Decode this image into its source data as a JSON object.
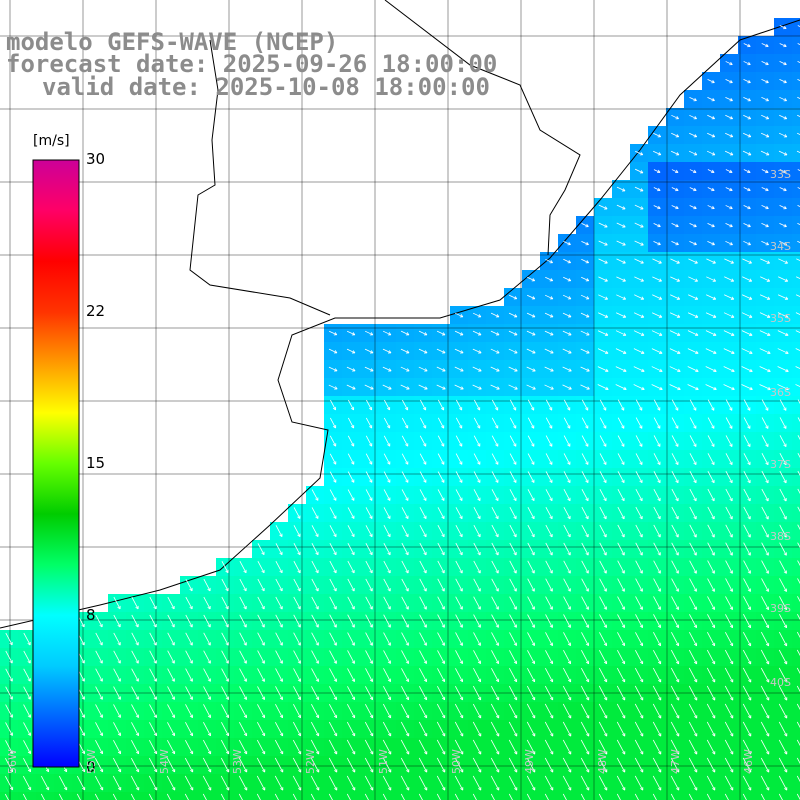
{
  "header": {
    "line1": "modelo GEFS-WAVE (NCEP)",
    "line2": "forecast date: 2025-09-26 18:00:00",
    "line3": "valid date: 2025-10-08 18:00:00"
  },
  "colorbar": {
    "unit": "[m/s]",
    "ticks": [
      "30",
      "22",
      "15",
      "8",
      "0"
    ],
    "tick_values": [
      30,
      22,
      15,
      8,
      0
    ],
    "min": 0,
    "max": 30,
    "colors": [
      "#0000ff",
      "#0066ff",
      "#00ccff",
      "#00ffff",
      "#00ff66",
      "#00cc00",
      "#66ff00",
      "#ffff00",
      "#ff9900",
      "#ff3300",
      "#ff0000",
      "#ff0066",
      "#cc0099"
    ]
  },
  "map": {
    "land_color": "#ffffff",
    "grid_color": "#000000",
    "coast_color": "#000000",
    "arrow_color": "#ffffff",
    "lat_labels": [
      "33S",
      "34S",
      "35S",
      "36S",
      "37S",
      "38S",
      "39S",
      "40S"
    ],
    "lon_labels": [
      "56W",
      "55W",
      "54W",
      "53W",
      "52W",
      "51W",
      "50W",
      "49W",
      "48W",
      "47W",
      "46W"
    ],
    "field_note": "wind speed and direction"
  }
}
